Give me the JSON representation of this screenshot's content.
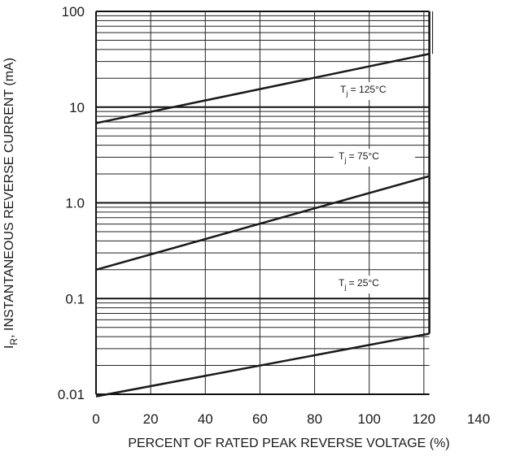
{
  "chart_data": {
    "type": "line",
    "y_label": {
      "symbol": "I",
      "subscript": "R",
      "text": ", INSTANTANEOUS REVERSE CURRENT (mA)"
    },
    "x_label": "PERCENT OF RATED PEAK REVERSE VOLTAGE (%)",
    "log_y": true,
    "grid": true,
    "xlim": [
      0,
      140
    ],
    "xticks": [
      0,
      20,
      40,
      60,
      80,
      100,
      120,
      140
    ],
    "ylim": [
      0.01,
      100
    ],
    "yticks": [
      100,
      10,
      {
        "value": 1,
        "label": "1.0"
      },
      0.1,
      0.01
    ],
    "x": [
      0,
      122
    ],
    "series": [
      {
        "name": {
          "symbol": "T",
          "subscript": "j",
          "text": " = 125°C"
        },
        "color": "#1a1a1a",
        "values": [
          6.8,
          36
        ]
      },
      {
        "name": {
          "symbol": "T",
          "subscript": "j",
          "text": " = 75°C"
        },
        "color": "#1a1a1a",
        "values": [
          0.2,
          1.9
        ]
      },
      {
        "name": {
          "symbol": "T",
          "subscript": "j",
          "text": " = 25°C"
        },
        "color": "#1a1a1a",
        "values": [
          0.0095,
          0.043
        ]
      }
    ]
  }
}
